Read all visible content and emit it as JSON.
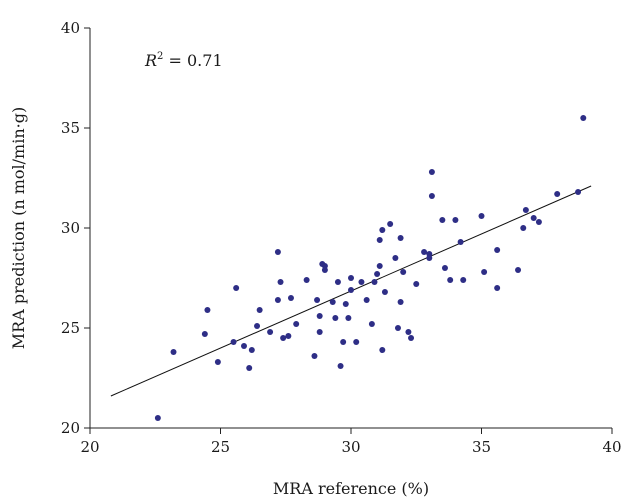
{
  "chart_data": {
    "type": "scatter",
    "xlabel": "MRA reference (%)",
    "ylabel": "MRA prediction (n mol/min·g)",
    "xlim": [
      20,
      40
    ],
    "ylim": [
      20,
      40
    ],
    "xticks": [
      "20",
      "25",
      "30",
      "35",
      "40"
    ],
    "yticks": [
      "20",
      "25",
      "30",
      "35",
      "40"
    ],
    "grid": false,
    "annotation": {
      "prefix": "R",
      "sup": "2",
      "suffix": " = 0.71"
    },
    "fit_line": {
      "x": [
        20.8,
        39.2
      ],
      "y": [
        21.6,
        32.1
      ]
    },
    "points": {
      "x": [
        22.6,
        23.2,
        24.4,
        24.5,
        24.9,
        25.5,
        25.6,
        25.9,
        26.1,
        26.2,
        26.4,
        26.5,
        26.9,
        27.2,
        27.2,
        27.3,
        27.4,
        27.6,
        27.7,
        27.9,
        28.3,
        28.6,
        28.7,
        28.8,
        28.8,
        28.9,
        29.0,
        29.0,
        29.3,
        29.4,
        29.5,
        29.6,
        29.7,
        29.8,
        29.9,
        30.0,
        30.0,
        30.2,
        30.4,
        30.6,
        30.8,
        30.9,
        31.0,
        31.1,
        31.1,
        31.2,
        31.2,
        31.3,
        31.5,
        31.7,
        31.8,
        31.9,
        31.9,
        32.0,
        32.2,
        32.3,
        32.5,
        32.8,
        33.0,
        33.0,
        33.1,
        33.1,
        33.5,
        33.6,
        33.8,
        34.0,
        34.2,
        34.3,
        35.0,
        35.1,
        35.6,
        35.6,
        36.4,
        36.6,
        36.7,
        37.0,
        37.2,
        37.9,
        38.7,
        38.9
      ],
      "y": [
        20.5,
        23.8,
        24.7,
        25.9,
        23.3,
        24.3,
        27.0,
        24.1,
        23.0,
        23.9,
        25.1,
        25.9,
        24.8,
        26.4,
        28.8,
        27.3,
        24.5,
        24.6,
        26.5,
        25.2,
        27.4,
        23.6,
        26.4,
        24.8,
        25.6,
        28.2,
        28.1,
        27.9,
        26.3,
        25.5,
        27.3,
        23.1,
        24.3,
        26.2,
        25.5,
        26.9,
        27.5,
        24.3,
        27.3,
        26.4,
        25.2,
        27.3,
        27.7,
        28.1,
        29.4,
        23.9,
        29.9,
        26.8,
        30.2,
        28.5,
        25.0,
        29.5,
        26.3,
        27.8,
        24.8,
        24.5,
        27.2,
        28.8,
        28.7,
        28.5,
        31.6,
        32.8,
        30.4,
        28.0,
        27.4,
        30.4,
        29.3,
        27.4,
        30.6,
        27.8,
        28.9,
        27.0,
        27.9,
        30.0,
        30.9,
        30.5,
        30.3,
        31.7,
        31.8,
        35.5
      ]
    }
  }
}
